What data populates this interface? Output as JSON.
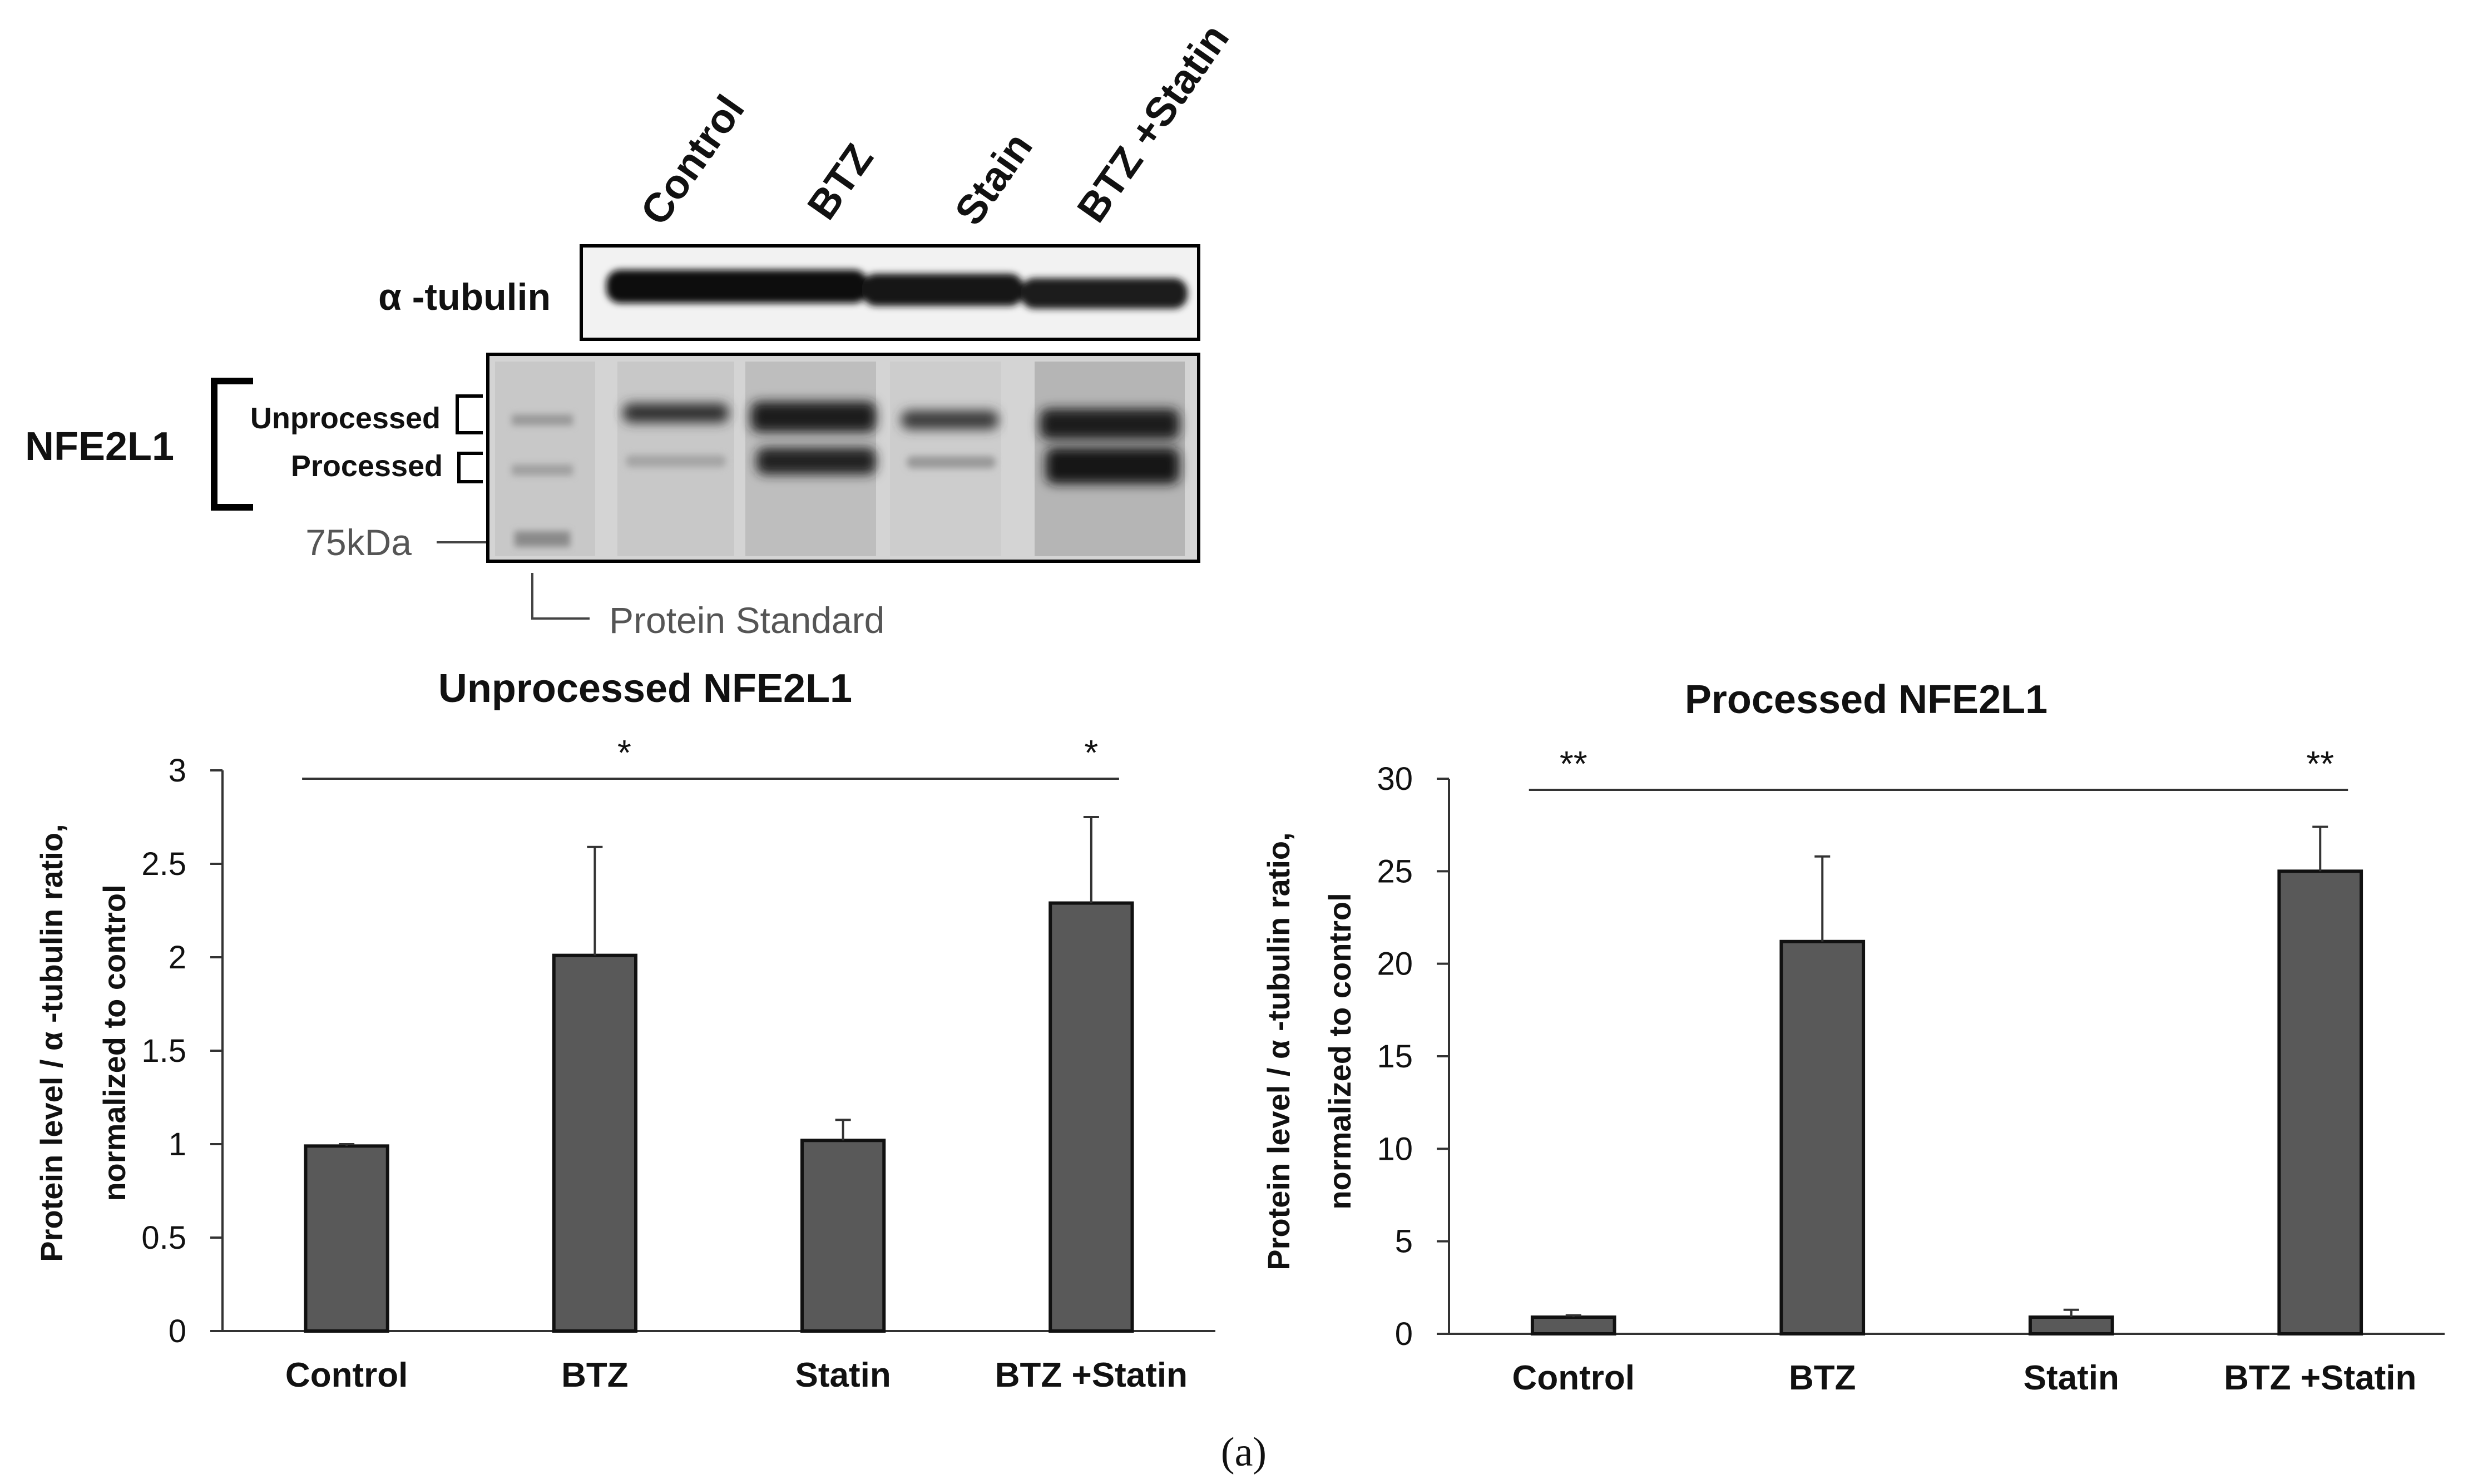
{
  "blot": {
    "lanes": [
      "Control",
      "BTZ",
      "Stain",
      "BTZ +Statin"
    ],
    "tubulin_label": "α -tubulin",
    "target_label": "NFE2L1",
    "band_unprocessed": "Unprocessed",
    "band_processed": "Processed",
    "marker": "75kDa",
    "standard": "Protein Standard"
  },
  "panel_label": "(a)",
  "chart_data": [
    {
      "type": "bar",
      "title": "Unprocessed NFE2L1",
      "categories": [
        "Control",
        "BTZ",
        "Statin",
        "BTZ +Statin"
      ],
      "values": [
        0.99,
        2.01,
        1.02,
        2.29
      ],
      "errors": [
        0.01,
        0.58,
        0.11,
        0.46
      ],
      "ylabel_line1": "Protein level / α -tubulin ratio,",
      "ylabel_line2": "normalized to control",
      "xlabel": "",
      "ylim": [
        0,
        3
      ],
      "yticks": [
        0,
        0.5,
        1,
        1.5,
        2,
        2.5,
        3
      ],
      "yticklabels": [
        "0",
        "0.5",
        "1",
        "1.5",
        "2",
        "2.5",
        "3"
      ],
      "grid": false,
      "bar_color": "#595959",
      "significance": {
        "line_from": "Control",
        "line_to": "BTZ +Statin",
        "marks": [
          {
            "at": "Statin",
            "text": "*"
          },
          {
            "at": "BTZ +Statin",
            "text": "*"
          }
        ]
      }
    },
    {
      "type": "bar",
      "title": "Processed NFE2L1",
      "categories": [
        "Control",
        "BTZ",
        "Statin",
        "BTZ +Statin"
      ],
      "values": [
        0.9,
        21.2,
        0.9,
        25.0
      ],
      "errors": [
        0.1,
        4.6,
        0.4,
        2.4
      ],
      "ylabel_line1": "Protein level / α -tubulin ratio,",
      "ylabel_line2": "normalized to control",
      "xlabel": "",
      "ylim": [
        0,
        30
      ],
      "yticks": [
        0,
        5,
        10,
        15,
        20,
        25,
        30
      ],
      "yticklabels": [
        "0",
        "5",
        "10",
        "15",
        "20",
        "25",
        "30"
      ],
      "grid": false,
      "bar_color": "#595959",
      "significance": {
        "line_from": "Control",
        "line_to": "BTZ +Statin",
        "marks": [
          {
            "at": "Control",
            "text": "**"
          },
          {
            "at": "BTZ +Statin",
            "text": "**"
          }
        ]
      }
    }
  ]
}
